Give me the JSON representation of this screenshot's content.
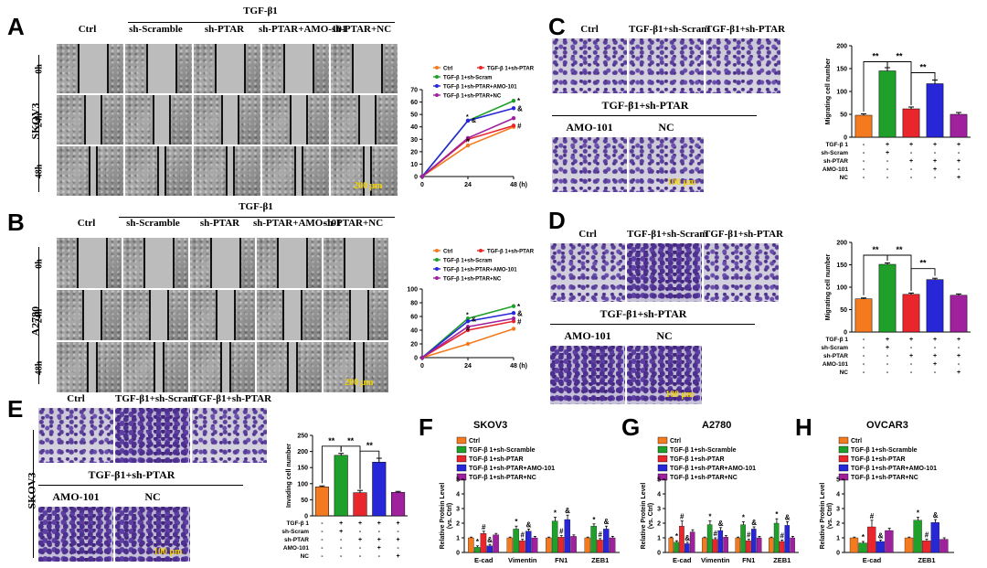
{
  "panels": {
    "A": {
      "label": "A",
      "treatment": "TGF-β1",
      "cols": [
        "Ctrl",
        "sh-Scramble",
        "sh-PTAR",
        "sh-PTAR+AMO-101",
        "sh-PTAR+NC"
      ],
      "rows": [
        "0h",
        "24h",
        "48h"
      ],
      "cell_line": "SKOV3",
      "scale": "200 μm"
    },
    "B": {
      "label": "B",
      "treatment": "TGF-β1",
      "cols": [
        "Ctrl",
        "sh-Scramble",
        "sh-PTAR",
        "sh-PTAR+AMO-101",
        "sh-PTAR+NC"
      ],
      "rows": [
        "0h",
        "24h",
        "48h"
      ],
      "cell_line": "A2780",
      "scale": "200 μm"
    },
    "C": {
      "label": "C",
      "top": [
        "Ctrl",
        "TGF-β1+sh-Scram",
        "TGF-β1+sh-PTAR"
      ],
      "group": "TGF-β1+sh-PTAR",
      "bottom": [
        "AMO-101",
        "NC"
      ],
      "scale": "100 μm"
    },
    "D": {
      "label": "D",
      "top": [
        "Ctrl",
        "TGF-β1+sh-Scram",
        "TGF-β1+sh-PTAR"
      ],
      "group": "TGF-β1+sh-PTAR",
      "bottom": [
        "AMO-101",
        "NC"
      ],
      "scale": "100 μm"
    },
    "E": {
      "label": "E",
      "top": [
        "Ctrl",
        "TGF-β1+sh-Scram",
        "TGF-β1+sh-PTAR"
      ],
      "group": "TGF-β1+sh-PTAR",
      "bottom": [
        "AMO-101",
        "NC"
      ],
      "cell_line": "SKOV3",
      "scale": "100 μm"
    },
    "F": {
      "label": "F"
    },
    "G": {
      "label": "G"
    },
    "H": {
      "label": "H"
    }
  },
  "colors": {
    "ctrl": "#f47a20",
    "scram": "#1fa02a",
    "ptar": "#e8262b",
    "amo": "#2727d8",
    "nc": "#a0219e"
  },
  "chart_data": [
    {
      "id": "A-line",
      "type": "line",
      "ylabel": "Wound-healing rate (%)",
      "xunit": "(h)",
      "x": [
        0,
        24,
        48
      ],
      "ylim": [
        0,
        70
      ],
      "yticks": [
        0,
        10,
        20,
        30,
        40,
        50,
        60,
        70
      ],
      "legend": [
        "Ctrl",
        "TGF-β 1+sh-PTAR",
        "TGF-β 1+sh-Scram",
        "TGF-β 1+sh-PTAR+AMO-101",
        "TGF-β 1+sh-PTAR+NC"
      ],
      "series": [
        {
          "name": "Ctrl",
          "values": [
            0,
            25,
            40
          ]
        },
        {
          "name": "TGF-β 1+sh-PTAR",
          "values": [
            0,
            30,
            41
          ]
        },
        {
          "name": "TGF-β 1+sh-Scram",
          "values": [
            0,
            45,
            61
          ]
        },
        {
          "name": "TGF-β 1+sh-PTAR+AMO-101",
          "values": [
            0,
            45,
            55
          ]
        },
        {
          "name": "TGF-β 1+sh-PTAR+NC",
          "values": [
            0,
            31,
            47
          ]
        }
      ],
      "marks": [
        "*",
        "&",
        "#"
      ]
    },
    {
      "id": "B-line",
      "type": "line",
      "ylabel": "Wound-healing rate (%)",
      "xunit": "(h)",
      "x": [
        0,
        24,
        48
      ],
      "ylim": [
        0,
        100
      ],
      "yticks": [
        0,
        20,
        40,
        60,
        80,
        100
      ],
      "legend": [
        "Ctrl",
        "TGF-β 1+sh-PTAR",
        "TGF-β 1+sh-Scram",
        "TGF-β 1+sh-PTAR+AMO-101",
        "TGF-β 1+sh-PTAR+NC"
      ],
      "series": [
        {
          "name": "Ctrl",
          "values": [
            0,
            20,
            42
          ]
        },
        {
          "name": "TGF-β 1+sh-PTAR",
          "values": [
            0,
            40,
            53
          ]
        },
        {
          "name": "TGF-β 1+sh-Scram",
          "values": [
            0,
            57,
            75
          ]
        },
        {
          "name": "TGF-β 1+sh-PTAR+AMO-101",
          "values": [
            0,
            53,
            65
          ]
        },
        {
          "name": "TGF-β 1+sh-PTAR+NC",
          "values": [
            0,
            45,
            57
          ]
        }
      ],
      "marks": [
        "*",
        "&",
        "#"
      ]
    },
    {
      "id": "C-bar",
      "type": "bar",
      "ylabel": "Migrating cell number",
      "ylim": [
        0,
        200
      ],
      "yticks": [
        0,
        50,
        100,
        150,
        200
      ],
      "values": [
        48,
        145,
        62,
        117,
        50
      ],
      "errors": [
        3,
        7,
        4,
        8,
        4
      ],
      "rows": [
        {
          "name": "TGF-β 1",
          "cells": [
            "-",
            "+",
            "+",
            "+",
            "+"
          ]
        },
        {
          "name": "sh-Scram",
          "cells": [
            "-",
            "+",
            "-",
            "-",
            "-"
          ]
        },
        {
          "name": "sh-PTAR",
          "cells": [
            "-",
            "-",
            "+",
            "+",
            "+"
          ]
        },
        {
          "name": "AMO-101",
          "cells": [
            "-",
            "-",
            "-",
            "+",
            "-"
          ]
        },
        {
          "name": "NC",
          "cells": [
            "-",
            "-",
            "-",
            "-",
            "+"
          ]
        }
      ],
      "sig": "**"
    },
    {
      "id": "D-bar",
      "type": "bar",
      "ylabel": "Migrating cell number",
      "ylim": [
        0,
        200
      ],
      "yticks": [
        0,
        50,
        100,
        150,
        200
      ],
      "values": [
        74,
        151,
        84,
        117,
        82
      ],
      "errors": [
        2,
        3,
        3,
        3,
        3
      ],
      "rows": [
        {
          "name": "TGF-β 1",
          "cells": [
            "-",
            "+",
            "+",
            "+",
            "+"
          ]
        },
        {
          "name": "sh-Scram",
          "cells": [
            "-",
            "+",
            "-",
            "-",
            "-"
          ]
        },
        {
          "name": "sh-PTAR",
          "cells": [
            "-",
            "-",
            "+",
            "+",
            "+"
          ]
        },
        {
          "name": "AMO-101",
          "cells": [
            "-",
            "-",
            "-",
            "+",
            "-"
          ]
        },
        {
          "name": "NC",
          "cells": [
            "-",
            "-",
            "-",
            "-",
            "+"
          ]
        }
      ],
      "sig": "**"
    },
    {
      "id": "E-bar",
      "type": "bar",
      "ylabel": "Invading cell number",
      "ylim": [
        0,
        250
      ],
      "yticks": [
        0,
        50,
        100,
        150,
        200,
        250
      ],
      "values": [
        90,
        188,
        72,
        167,
        73
      ],
      "errors": [
        3,
        6,
        7,
        12,
        3
      ],
      "rows": [
        {
          "name": "TGF-β 1",
          "cells": [
            "-",
            "+",
            "+",
            "+",
            "+"
          ]
        },
        {
          "name": "sh-Scram",
          "cells": [
            "-",
            "+",
            "-",
            "-",
            "-"
          ]
        },
        {
          "name": "sh-PTAR",
          "cells": [
            "-",
            "-",
            "+",
            "+",
            "+"
          ]
        },
        {
          "name": "AMO-101",
          "cells": [
            "-",
            "-",
            "-",
            "+",
            "-"
          ]
        },
        {
          "name": "NC",
          "cells": [
            "-",
            "-",
            "-",
            "-",
            "+"
          ]
        }
      ],
      "sig": "**"
    },
    {
      "id": "F-bar",
      "type": "bar",
      "title": "SKOV3",
      "ylabel": "Relative Protein Level",
      "ylabel2": "(vs. Ctrl)",
      "ylim": [
        0,
        5
      ],
      "yticks": [
        0,
        1,
        2,
        3,
        4,
        5
      ],
      "categories": [
        "E-cad",
        "Vimentin",
        "FN1",
        "ZEB1"
      ],
      "legend": [
        "Ctrl",
        "TGF-β 1+sh-Scramble",
        "TGF-β 1+sh-PTAR",
        "TGF-β 1+sh-PTAR+AMO-101",
        "TGF-β 1+sh-PTAR+NC"
      ],
      "series": [
        {
          "name": "Ctrl",
          "values": [
            1,
            1,
            1,
            1
          ]
        },
        {
          "name": "TGF-β 1+sh-Scramble",
          "values": [
            0.35,
            1.6,
            2.15,
            1.8
          ]
        },
        {
          "name": "TGF-β 1+sh-PTAR",
          "values": [
            1.3,
            0.8,
            1.05,
            0.85
          ]
        },
        {
          "name": "TGF-β 1+sh-PTAR+AMO-101",
          "values": [
            0.45,
            1.45,
            2.25,
            1.6
          ]
        },
        {
          "name": "TGF-β 1+sh-PTAR+NC",
          "values": [
            1.2,
            1.0,
            1.1,
            1.0
          ]
        }
      ],
      "errors": [
        [
          0.05,
          0.05,
          0.05,
          0.05
        ],
        [
          0.1,
          0.2,
          0.25,
          0.15
        ],
        [
          0.15,
          0.1,
          0.1,
          0.1
        ],
        [
          0.1,
          0.15,
          0.3,
          0.2
        ],
        [
          0.1,
          0.1,
          0.1,
          0.1
        ]
      ],
      "marks": [
        "*",
        "#",
        "&"
      ]
    },
    {
      "id": "G-bar",
      "type": "bar",
      "title": "A2780",
      "ylabel": "Relative Protein Level",
      "ylabel2": "(vs. Ctrl)",
      "ylim": [
        0,
        5
      ],
      "yticks": [
        0,
        1,
        2,
        3,
        4,
        5
      ],
      "categories": [
        "E-cad",
        "Vimentin",
        "FN1",
        "ZEB1"
      ],
      "legend": [
        "Ctrl",
        "TGF-β 1+sh-Scramble",
        "TGF-β 1+sh-PTAR",
        "TGF-β 1+sh-PTAR+AMO-101",
        "TGF-β 1+sh-PTAR+NC"
      ],
      "series": [
        {
          "name": "Ctrl",
          "values": [
            1,
            1,
            1,
            1
          ]
        },
        {
          "name": "TGF-β 1+sh-Scramble",
          "values": [
            0.7,
            1.9,
            1.9,
            2.0
          ]
        },
        {
          "name": "TGF-β 1+sh-PTAR",
          "values": [
            1.8,
            0.9,
            0.8,
            0.75
          ]
        },
        {
          "name": "TGF-β 1+sh-PTAR+AMO-101",
          "values": [
            0.6,
            1.5,
            1.6,
            1.85
          ]
        },
        {
          "name": "TGF-β 1+sh-PTAR+NC",
          "values": [
            1.4,
            1.05,
            1.0,
            1.0
          ]
        }
      ],
      "errors": [
        [
          0.05,
          0.05,
          0.05,
          0.05
        ],
        [
          0.1,
          0.25,
          0.2,
          0.3
        ],
        [
          0.35,
          0.1,
          0.1,
          0.1
        ],
        [
          0.1,
          0.2,
          0.15,
          0.25
        ],
        [
          0.15,
          0.1,
          0.1,
          0.1
        ]
      ],
      "marks": [
        "*",
        "#",
        "&"
      ]
    },
    {
      "id": "H-bar",
      "type": "bar",
      "title": "OVCAR3",
      "ylabel": "Relative Protein Level",
      "ylabel2": "(vs. Ctrl)",
      "ylim": [
        0,
        5
      ],
      "yticks": [
        0,
        1,
        2,
        3,
        4,
        5
      ],
      "categories": [
        "E-cad",
        "ZEB1"
      ],
      "legend": [
        "Ctrl",
        "TGF-β 1+sh-Scramble",
        "TGF-β 1+sh-PTAR",
        "TGF-β 1+sh-PTAR+AMO-101",
        "TGF-β 1+sh-PTAR+NC"
      ],
      "series": [
        {
          "name": "Ctrl",
          "values": [
            1,
            1
          ]
        },
        {
          "name": "TGF-β 1+sh-Scramble",
          "values": [
            0.65,
            2.2
          ]
        },
        {
          "name": "TGF-β 1+sh-PTAR",
          "values": [
            1.75,
            0.8
          ]
        },
        {
          "name": "TGF-β 1+sh-PTAR+AMO-101",
          "values": [
            0.75,
            2.05
          ]
        },
        {
          "name": "TGF-β 1+sh-PTAR+NC",
          "values": [
            1.5,
            0.9
          ]
        }
      ],
      "errors": [
        [
          0.05,
          0.05
        ],
        [
          0.1,
          0.2
        ],
        [
          0.45,
          0.1
        ],
        [
          0.1,
          0.2
        ],
        [
          0.15,
          0.1
        ]
      ],
      "marks": [
        "*",
        "#",
        "&"
      ]
    }
  ]
}
